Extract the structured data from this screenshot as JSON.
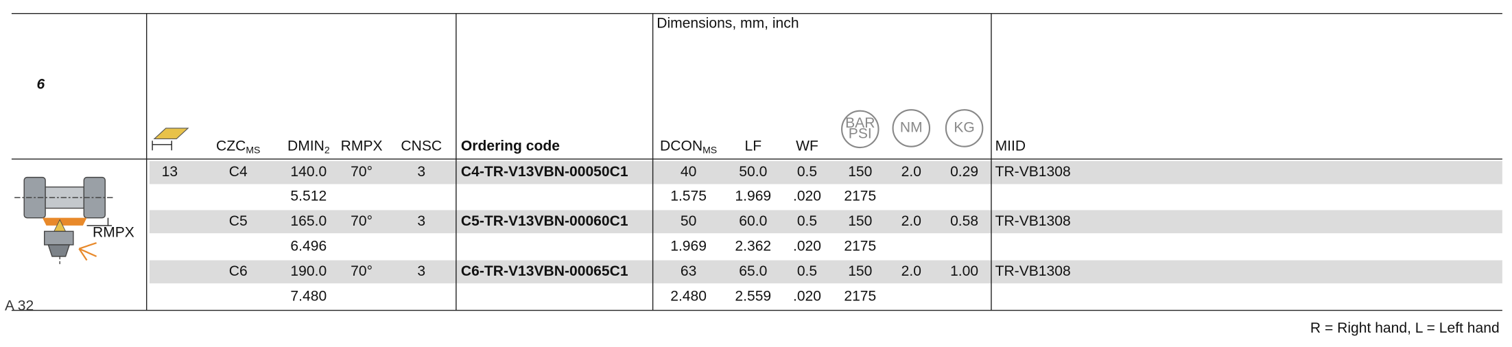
{
  "page_ref": "A 32",
  "section_number": "6",
  "dimensions_label": "Dimensions, mm, inch",
  "table": {
    "columns": [
      null,
      {
        "text": "CZC",
        "sub": "MS"
      },
      {
        "text": "DMIN",
        "sub": "2"
      },
      {
        "text": "RMPX"
      },
      {
        "text": "CNSC"
      },
      {
        "text": "Ordering code"
      },
      {
        "text": "DCON",
        "sub": "MS"
      },
      {
        "text": "LF"
      },
      {
        "text": "WF"
      },
      {
        "circle": [
          "BAR",
          "PSI"
        ]
      },
      {
        "circle": [
          "NM"
        ]
      },
      {
        "circle": [
          "KG"
        ]
      },
      {
        "text": "MIID"
      }
    ],
    "rows": [
      [
        "13",
        "C4",
        "140.0",
        "70°",
        "3",
        "C4-TR-V13VBN-00050C1",
        "40",
        "50.0",
        "0.5",
        "150",
        "2.0",
        "0.29",
        "TR-VB1308"
      ],
      [
        null,
        null,
        "5.512",
        null,
        null,
        null,
        "1.575",
        "1.969",
        ".020",
        "2175",
        null,
        null,
        null
      ],
      [
        null,
        "C5",
        "165.0",
        "70°",
        "3",
        "C5-TR-V13VBN-00060C1",
        "50",
        "60.0",
        "0.5",
        "150",
        "2.0",
        "0.58",
        "TR-VB1308"
      ],
      [
        null,
        null,
        "6.496",
        null,
        null,
        null,
        "1.969",
        "2.362",
        ".020",
        "2175",
        null,
        null,
        null
      ],
      [
        null,
        "C6",
        "190.0",
        "70°",
        "3",
        "C6-TR-V13VBN-00065C1",
        "63",
        "65.0",
        "0.5",
        "150",
        "2.0",
        "1.00",
        "TR-VB1308"
      ],
      [
        null,
        null,
        "7.480",
        null,
        null,
        null,
        "2.480",
        "2.559",
        ".020",
        "2175",
        null,
        null,
        null
      ]
    ]
  },
  "illustration_label": "RMPX",
  "footer_note": "R = Right hand, L = Left hand"
}
